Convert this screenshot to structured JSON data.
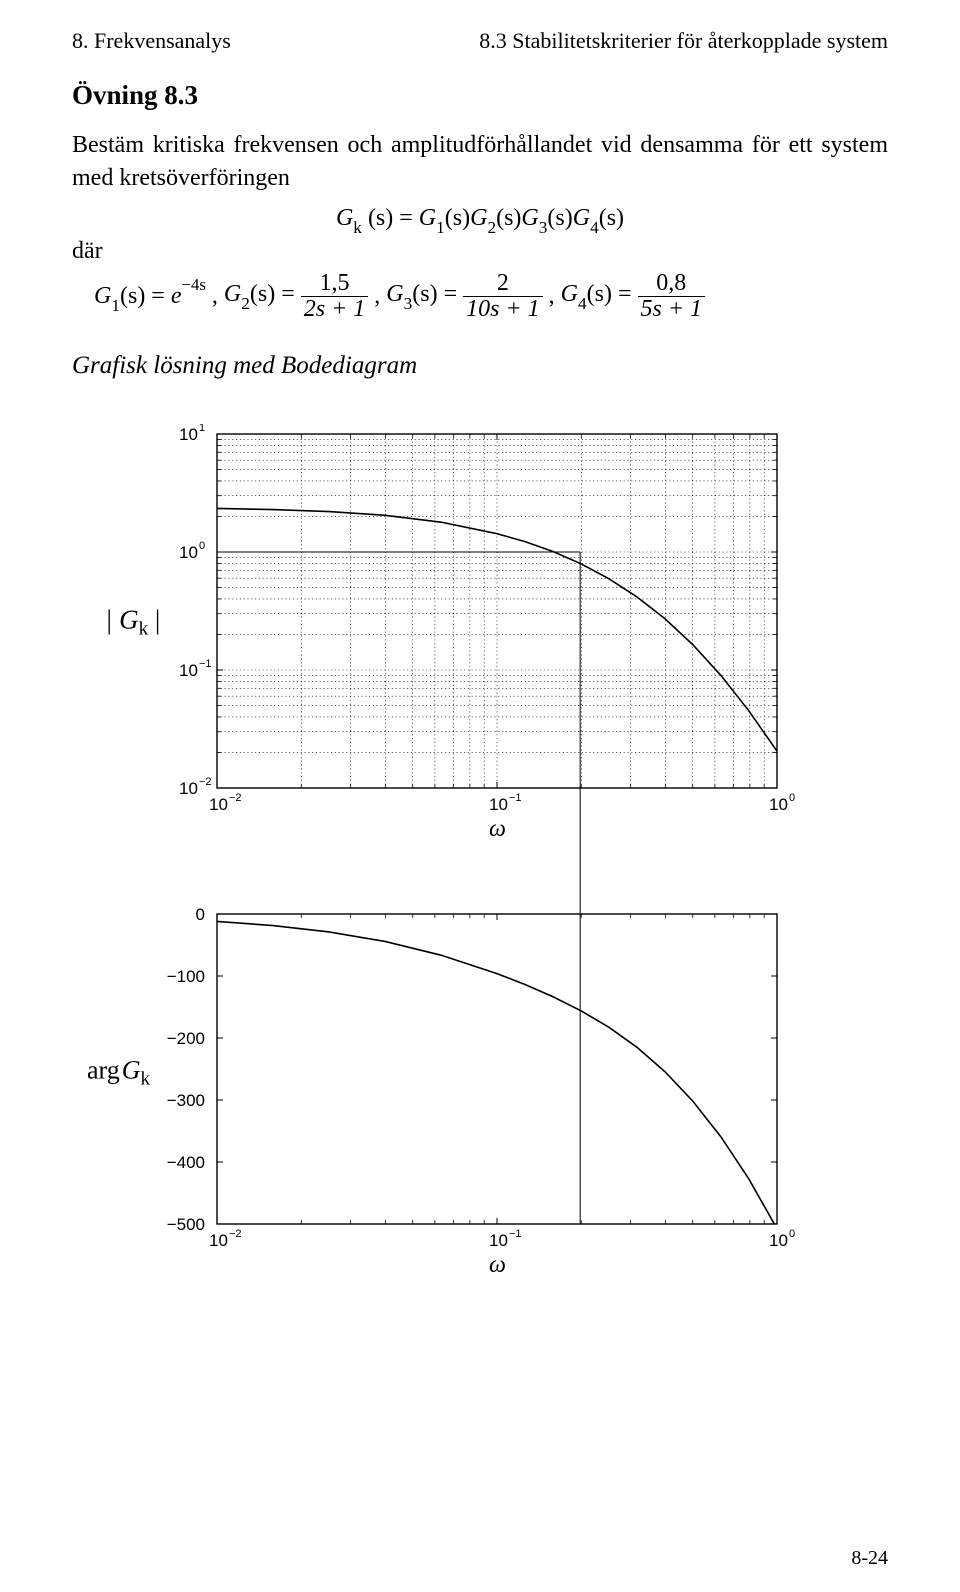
{
  "header": {
    "left": "8. Frekvensanalys",
    "right": "8.3 Stabilitetskriterier för återkopplade system"
  },
  "title": "Övning 8.3",
  "paragraph": "Bestäm kritiska frekvensen och amplitudförhållandet vid densamma för ett system med kretsöverföringen",
  "eq_center": {
    "lhs_G": "G",
    "lhs_sub": "k",
    "s_text": "(s) =",
    "r1_G": "G",
    "r1_sub": "1",
    "gap": "(s)",
    "r2_G": "G",
    "r2_sub": "2",
    "r3_G": "G",
    "r3_sub": "3",
    "r4_G": "G",
    "r4_sub": "4",
    "end": "(s)"
  },
  "where": "där",
  "eq2": {
    "g1": {
      "G": "G",
      "sub": "1",
      "s": "(s) = ",
      "e": "e",
      "exp": "−4s"
    },
    "comma": ", ",
    "g2": {
      "G": "G",
      "sub": "2",
      "s": "(s) =",
      "num": "1,5",
      "den": "2s + 1"
    },
    "g3": {
      "G": "G",
      "sub": "3",
      "s": "(s) =",
      "num": "2",
      "den": "10s + 1"
    },
    "g4": {
      "G": "G",
      "sub": "4",
      "s": "(s) =",
      "num": "0,8",
      "den": "5s + 1"
    }
  },
  "section_title": "Grafisk lösning med Bodediagram",
  "footer": "8-24",
  "mag_chart": {
    "type": "line",
    "x_log_min": -2,
    "x_log_max": 0,
    "y_log_min": -2,
    "y_log_max": 1,
    "ytick_labels": [
      "10",
      "10",
      "10",
      "10"
    ],
    "ytick_exponents": [
      "−2",
      "−1",
      "0",
      "1"
    ],
    "xtick_labels": [
      "10",
      "10",
      "10"
    ],
    "xtick_exponents": [
      "−2",
      "−1",
      "0"
    ],
    "ylabel_G": "| G",
    "ylabel_sub": "k",
    "ylabel_end": " |",
    "xlabel": "ω",
    "grid_major_color": "#000000",
    "grid_minor_color": "#000000",
    "grid_minor_dash": "1.2 2.6",
    "box_stroke": "#000000",
    "box_width": 1.4,
    "line_color": "#000000",
    "line_width": 1.6,
    "curve": [
      [
        -2.0,
        0.369
      ],
      [
        -1.8,
        0.36
      ],
      [
        -1.6,
        0.343
      ],
      [
        -1.4,
        0.311
      ],
      [
        -1.2,
        0.253
      ],
      [
        -1.0,
        0.155
      ],
      [
        -0.9,
        0.088
      ],
      [
        -0.8,
        0.004
      ],
      [
        -0.7,
        -0.1
      ],
      [
        -0.6,
        -0.227
      ],
      [
        -0.5,
        -0.381
      ],
      [
        -0.4,
        -0.566
      ],
      [
        -0.3,
        -0.787
      ],
      [
        -0.2,
        -1.047
      ],
      [
        -0.1,
        -1.348
      ],
      [
        0.0,
        -1.688
      ]
    ],
    "marker_x_log": -0.703,
    "marker_y_log": 0.0,
    "background": "#ffffff"
  },
  "phase_chart": {
    "type": "line",
    "x_log_min": -2,
    "x_log_max": 0,
    "y_min": -500,
    "y_max": 0,
    "ytick_values": [
      0,
      -100,
      -200,
      -300,
      -400,
      -500
    ],
    "ytick_labels": [
      "0",
      "−100",
      "−200",
      "−300",
      "−400",
      "−500"
    ],
    "xtick_labels": [
      "10",
      "10",
      "10"
    ],
    "xtick_exponents": [
      "−2",
      "−1",
      "0"
    ],
    "ylabel_arg": "arg",
    "ylabel_G": "G",
    "ylabel_sub": "k",
    "xlabel": "ω",
    "box_stroke": "#000000",
    "box_width": 1.4,
    "line_color": "#000000",
    "line_width": 1.6,
    "curve": [
      [
        -2.0,
        -12.0
      ],
      [
        -1.8,
        -18.6
      ],
      [
        -1.6,
        -28.9
      ],
      [
        -1.4,
        -44.3
      ],
      [
        -1.2,
        -66.4
      ],
      [
        -1.0,
        -96.1
      ],
      [
        -0.9,
        -113.7
      ],
      [
        -0.8,
        -133.5
      ],
      [
        -0.7,
        -156.1
      ],
      [
        -0.6,
        -182.8
      ],
      [
        -0.5,
        -215.0
      ],
      [
        -0.4,
        -254.4
      ],
      [
        -0.3,
        -302.2
      ],
      [
        -0.2,
        -359.6
      ],
      [
        -0.1,
        -427.7
      ],
      [
        0.0,
        -507.6
      ]
    ],
    "background": "#ffffff"
  }
}
